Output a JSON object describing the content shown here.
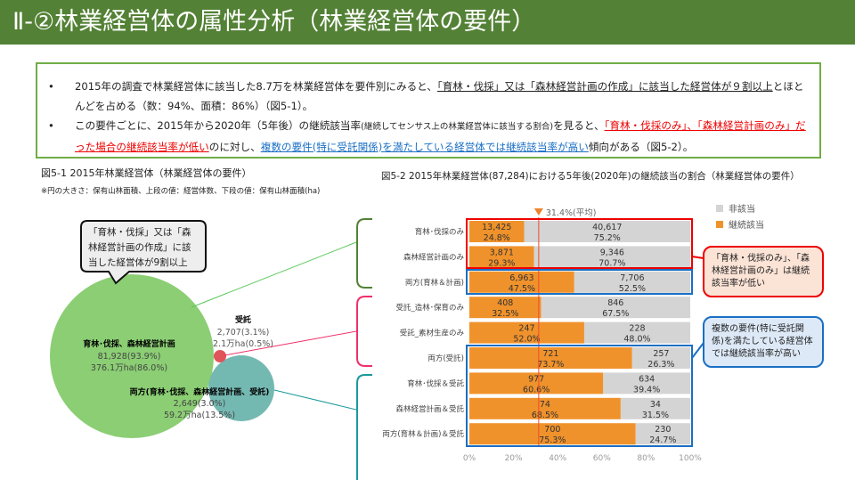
{
  "title": "Ⅱ-②林業経営体の属性分析（林業経営体の要件）",
  "summary": {
    "b1_a": "2015年の調査で林業経営体に該当した8.7万を林業経営体を要件別にみると、",
    "b1_u": "「育林・伐採」又は「森林経営計画の作成」に該当した経営体が９割以上",
    "b1_b": "とほとんどを占める（数：94%、面積：86%）（図5-1）。",
    "b2_a": "この要件ごとに、2015年から2020年（5年後）の継続該当率",
    "b2_small": "(継続してセンサス上の林業経営体に該当する割合)",
    "b2_b": "を見ると、",
    "b2_red": "「育林・伐採のみ」、「森林経営計画のみ」だった場合の継続該当率が低い",
    "b2_c": "のに対し、",
    "b2_blue": "複数の要件(特に受託関係)を満たしている経営体では継続該当率が高い",
    "b2_d": "傾向がある（図5-2）。"
  },
  "fig1": {
    "caption": "図5-1  2015年林業経営体（林業経営体の要件）",
    "note": "※円の大きさ：保有山林面積、上段の値：経営体数、下段の値：保有山林面積(ha)",
    "callout": "「育林・伐採」又は「森林経営計画の作成」に該当した経営体が9割以上",
    "big": {
      "label": "育林･伐採、森林経営計画",
      "count": "81,928(93.9%)",
      "area": "376.1万ha(86.0%)",
      "color": "#8bce74"
    },
    "small": {
      "label": "受託",
      "count": "2,707(3.1%)",
      "area": "2.1万ha(0.5%)",
      "color": "#e0555a"
    },
    "both": {
      "label": "両方(育林･伐採、森林経営計画、受託)",
      "count": "2,649(3.0%)",
      "area": "59.2万ha(13.5%)",
      "color": "#74b8b2"
    }
  },
  "callouts": {
    "low": "「育林・伐採のみ」、「森林経営計画のみ」は継続該当率が低い",
    "high": "複数の要件(特に受託関係)を満たしている経営体では継続該当率が高い"
  },
  "chart_data": {
    "type": "bar",
    "stacked": true,
    "title": "図5-2  2015年林業経営体(87,284)における5年後(2020年)の継続該当の割合（林業経営体の要件）",
    "categories": [
      "育林･伐採のみ",
      "森林経営計画のみ",
      "両方(育林＆計画)",
      "受託_造林･保育のみ",
      "受託_素材生産のみ",
      "両方(受託)",
      "育林･伐採＆受託",
      "森林経営計画＆受託",
      "両方(育林＆計画)＆受託"
    ],
    "series": [
      {
        "name": "継続該当",
        "color": "#f0922b",
        "counts": [
          "13,425",
          "3,871",
          "6,963",
          "408",
          "247",
          "721",
          "977",
          "74",
          "700"
        ],
        "values": [
          24.8,
          29.3,
          47.5,
          32.5,
          52.0,
          73.7,
          60.6,
          68.5,
          75.3
        ]
      },
      {
        "name": "非該当",
        "color": "#d4d4d4",
        "counts": [
          "40,617",
          "9,346",
          "7,706",
          "846",
          "228",
          "257",
          "634",
          "34",
          "230"
        ],
        "values": [
          75.2,
          70.7,
          52.5,
          67.5,
          48.0,
          26.3,
          39.4,
          31.5,
          24.7
        ]
      }
    ],
    "average": {
      "value": 31.4,
      "label": "31.4%(平均)"
    },
    "xticks": [
      "0%",
      "20%",
      "40%",
      "60%",
      "80%",
      "100%"
    ],
    "xlim": [
      0,
      100
    ],
    "legend": [
      "非該当",
      "継続該当"
    ],
    "legend_position": "top-right"
  }
}
